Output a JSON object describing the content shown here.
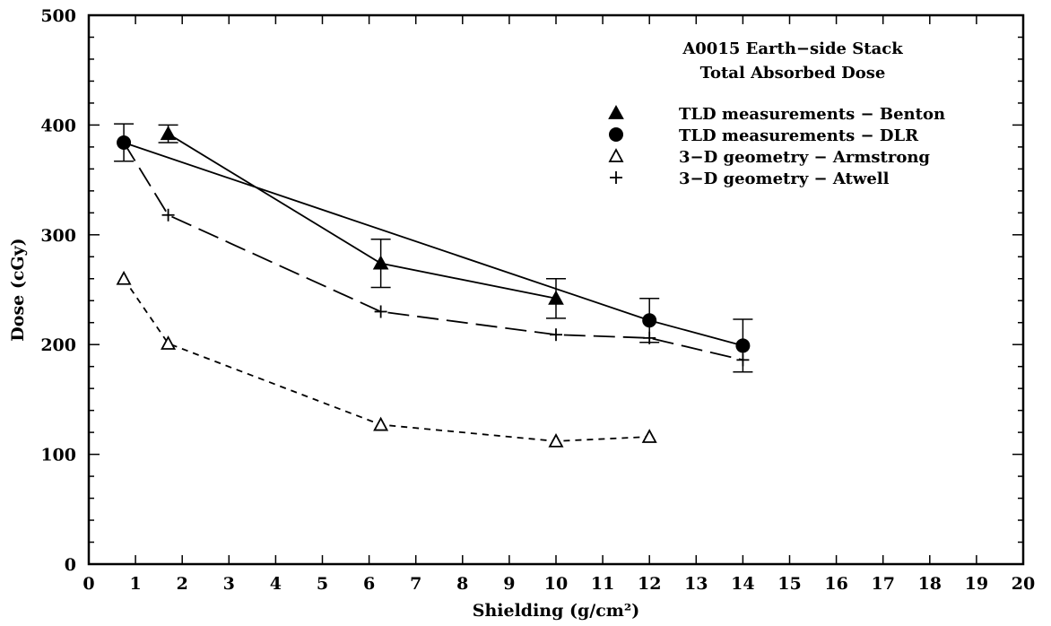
{
  "chart_data": {
    "type": "line",
    "title": "A0015 Earth−side Stack",
    "subtitle": "Total Absorbed Dose",
    "xlabel": "Shielding (g/cm²)",
    "ylabel": "Dose (cGy)",
    "xlim": [
      0,
      20
    ],
    "ylim": [
      0,
      500
    ],
    "xticks": [
      "0",
      "1",
      "2",
      "3",
      "4",
      "5",
      "6",
      "7",
      "8",
      "9",
      "10",
      "11",
      "12",
      "13",
      "14",
      "15",
      "16",
      "17",
      "18",
      "19",
      "20"
    ],
    "yticks": [
      "0",
      "100",
      "200",
      "300",
      "400",
      "500"
    ],
    "grid": false,
    "legend_position": "top-right",
    "series": [
      {
        "name": "TLD measurements − Benton",
        "marker": "filled-triangle",
        "line": "solid",
        "x": [
          1.7,
          6.25,
          10.0
        ],
        "y": [
          392,
          274,
          242
        ],
        "err": [
          8,
          22,
          18
        ]
      },
      {
        "name": "TLD measurements − DLR",
        "marker": "filled-circle",
        "line": "solid",
        "x": [
          0.75,
          12.0,
          14.0
        ],
        "y": [
          384,
          222,
          199
        ],
        "err": [
          17,
          20,
          24
        ]
      },
      {
        "name": "3−D geometry − Armstrong",
        "marker": "open-triangle",
        "line": "dashed-short",
        "x": [
          0.75,
          1.7,
          6.25,
          10.0,
          12.0
        ],
        "y": [
          260,
          201,
          127,
          112,
          116
        ]
      },
      {
        "name": "3−D geometry − Atwell",
        "marker": "plus",
        "line": "dashed-long",
        "x": [
          0.75,
          1.7,
          6.25,
          10.0,
          12.0,
          14.0
        ],
        "y": [
          384,
          318,
          230,
          209,
          206,
          186
        ]
      }
    ]
  }
}
